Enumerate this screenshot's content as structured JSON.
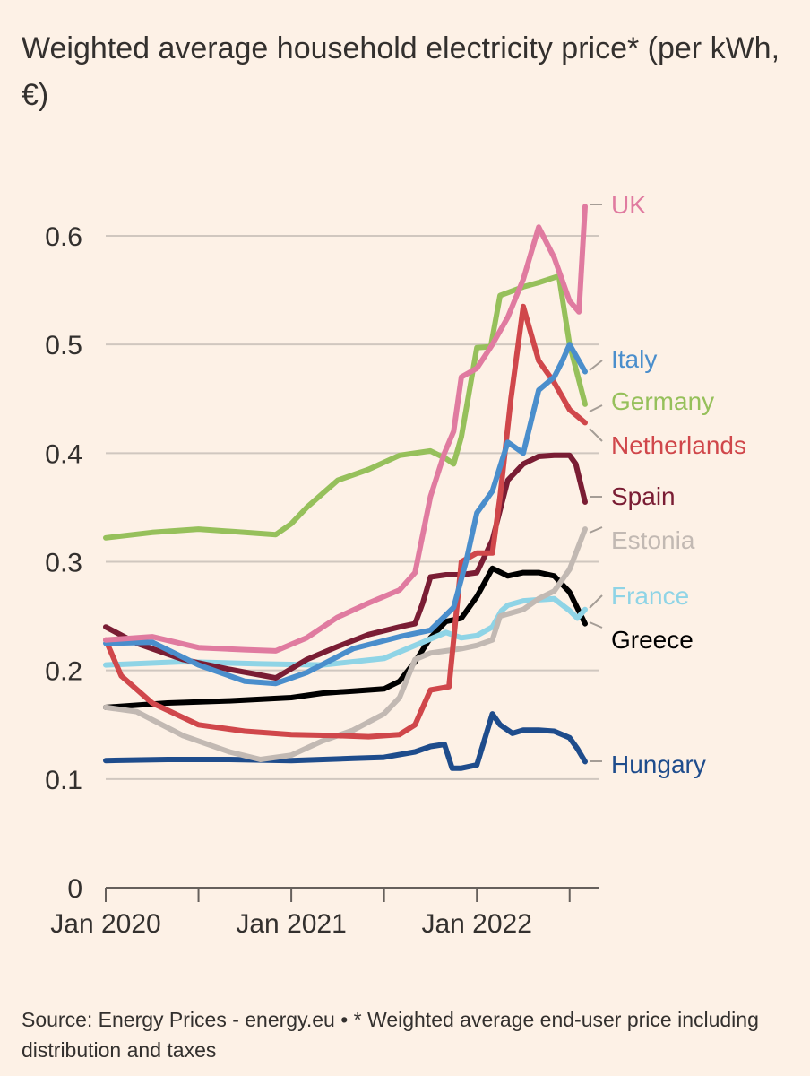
{
  "header": {
    "title": "Weighted average household electricity price* (per kWh, €)"
  },
  "footer": {
    "source": "Source: Energy Prices - energy.eu • * Weighted average end-user price including distribution and taxes"
  },
  "chart_data": {
    "type": "line",
    "title": "Weighted average household electricity price* (per kWh, €)",
    "xlabel": "",
    "ylabel": "",
    "x_unit": "months since Jan 2020",
    "xlim": [
      0,
      31
    ],
    "ylim": [
      0,
      0.6
    ],
    "grid": true,
    "legend": "direct labels at line ends",
    "x_ticks": [
      {
        "value": 0,
        "label": "Jan 2020"
      },
      {
        "value": 6,
        "label": ""
      },
      {
        "value": 12,
        "label": "Jan 2021"
      },
      {
        "value": 18,
        "label": ""
      },
      {
        "value": 24,
        "label": "Jan 2022"
      },
      {
        "value": 30,
        "label": ""
      }
    ],
    "y_ticks": [
      {
        "value": 0,
        "label": "0"
      },
      {
        "value": 0.1,
        "label": "0.1"
      },
      {
        "value": 0.2,
        "label": "0.2"
      },
      {
        "value": 0.3,
        "label": "0.3"
      },
      {
        "value": 0.4,
        "label": "0.4"
      },
      {
        "value": 0.5,
        "label": "0.5"
      },
      {
        "value": 0.6,
        "label": "0.6"
      }
    ],
    "series": [
      {
        "name": "UK",
        "color": "#e07ba0",
        "x": [
          0,
          3,
          6,
          9,
          11,
          13,
          15,
          17,
          19,
          20,
          21,
          21.9,
          22.5,
          23,
          24,
          25,
          26,
          27,
          28,
          29,
          30,
          30.6,
          31
        ],
        "y": [
          0.228,
          0.231,
          0.221,
          0.219,
          0.218,
          0.23,
          0.249,
          0.262,
          0.274,
          0.29,
          0.36,
          0.4,
          0.42,
          0.47,
          0.478,
          0.5,
          0.525,
          0.56,
          0.608,
          0.58,
          0.54,
          0.53,
          0.627
        ]
      },
      {
        "name": "Italy",
        "color": "#4a8ecc",
        "x": [
          0,
          3,
          6,
          9,
          11,
          13,
          16,
          19,
          21,
          22.5,
          23.3,
          24,
          25,
          26,
          27,
          28,
          29,
          29.5,
          30,
          31
        ],
        "y": [
          0.225,
          0.226,
          0.205,
          0.19,
          0.188,
          0.198,
          0.22,
          0.231,
          0.237,
          0.258,
          0.3,
          0.345,
          0.365,
          0.41,
          0.4,
          0.458,
          0.47,
          0.484,
          0.5,
          0.475
        ]
      },
      {
        "name": "Germany",
        "color": "#96c05b",
        "x": [
          0,
          3,
          6,
          9,
          11,
          12,
          13,
          15,
          17,
          19,
          21,
          22,
          22.5,
          23,
          24,
          24.9,
          25.5,
          27,
          28,
          29.3,
          30,
          31
        ],
        "y": [
          0.322,
          0.327,
          0.33,
          0.327,
          0.325,
          0.335,
          0.35,
          0.375,
          0.385,
          0.398,
          0.402,
          0.395,
          0.39,
          0.415,
          0.497,
          0.498,
          0.545,
          0.553,
          0.557,
          0.563,
          0.5,
          0.445
        ]
      },
      {
        "name": "Netherlands",
        "color": "#d0474b",
        "x": [
          0,
          1,
          3,
          6,
          9,
          12,
          15,
          17,
          19,
          20,
          21,
          22.2,
          23,
          24,
          25,
          25.5,
          26.2,
          27,
          28,
          29,
          30,
          31
        ],
        "y": [
          0.228,
          0.195,
          0.17,
          0.15,
          0.144,
          0.141,
          0.14,
          0.139,
          0.141,
          0.15,
          0.182,
          0.185,
          0.3,
          0.308,
          0.308,
          0.36,
          0.45,
          0.535,
          0.485,
          0.465,
          0.44,
          0.428
        ]
      },
      {
        "name": "Spain",
        "color": "#7a1d34",
        "x": [
          0,
          2,
          5,
          8,
          11,
          13,
          15,
          17,
          19,
          20,
          20.5,
          21,
          22,
          23,
          24,
          25,
          26,
          27,
          28,
          29,
          30,
          30.4,
          31
        ],
        "y": [
          0.24,
          0.225,
          0.21,
          0.201,
          0.193,
          0.21,
          0.222,
          0.233,
          0.24,
          0.243,
          0.262,
          0.286,
          0.288,
          0.288,
          0.29,
          0.32,
          0.375,
          0.39,
          0.397,
          0.398,
          0.398,
          0.39,
          0.355
        ]
      },
      {
        "name": "Estonia",
        "color": "#c2b9b3",
        "x": [
          0,
          2,
          5,
          8,
          10,
          12,
          14,
          16,
          18,
          19,
          20,
          21,
          22,
          23,
          24,
          25,
          25.5,
          26,
          27,
          28,
          29,
          30,
          31
        ],
        "y": [
          0.166,
          0.162,
          0.14,
          0.125,
          0.118,
          0.122,
          0.135,
          0.145,
          0.16,
          0.175,
          0.21,
          0.216,
          0.218,
          0.22,
          0.223,
          0.228,
          0.25,
          0.252,
          0.256,
          0.266,
          0.273,
          0.293,
          0.33
        ]
      },
      {
        "name": "France",
        "color": "#8fd4e6",
        "x": [
          0,
          5,
          10,
          14,
          18,
          20,
          22,
          23,
          24,
          25,
          25.6,
          26,
          27,
          28,
          29,
          30,
          30.5,
          31
        ],
        "y": [
          0.205,
          0.208,
          0.206,
          0.205,
          0.211,
          0.223,
          0.235,
          0.23,
          0.232,
          0.24,
          0.255,
          0.26,
          0.264,
          0.265,
          0.266,
          0.255,
          0.248,
          0.256
        ]
      },
      {
        "name": "Greece",
        "color": "#000000",
        "x": [
          0,
          4,
          8,
          12,
          14,
          16,
          18,
          19,
          20,
          21,
          22,
          23,
          24,
          25,
          26,
          27,
          28,
          29,
          30,
          31
        ],
        "y": [
          0.166,
          0.17,
          0.172,
          0.175,
          0.179,
          0.181,
          0.183,
          0.19,
          0.208,
          0.23,
          0.245,
          0.248,
          0.268,
          0.294,
          0.287,
          0.29,
          0.29,
          0.287,
          0.272,
          0.243
        ]
      },
      {
        "name": "Hungary",
        "color": "#1e4c8c",
        "x": [
          0,
          4,
          8,
          12,
          16,
          18,
          20,
          21,
          21.9,
          22.4,
          23,
          24,
          25,
          25.5,
          26.3,
          27,
          28,
          29,
          30,
          30.5,
          31
        ],
        "y": [
          0.117,
          0.118,
          0.118,
          0.117,
          0.119,
          0.12,
          0.125,
          0.13,
          0.132,
          0.11,
          0.11,
          0.113,
          0.16,
          0.15,
          0.142,
          0.145,
          0.145,
          0.144,
          0.138,
          0.128,
          0.116
        ]
      }
    ],
    "end_labels": [
      {
        "name": "UK",
        "color": "#e07ba0"
      },
      {
        "name": "Italy",
        "color": "#4a8ecc"
      },
      {
        "name": "Germany",
        "color": "#96c05b"
      },
      {
        "name": "Netherlands",
        "color": "#d0474b"
      },
      {
        "name": "Spain",
        "color": "#7a1d34"
      },
      {
        "name": "Estonia",
        "color": "#c2b9b3"
      },
      {
        "name": "France",
        "color": "#8fd4e6"
      },
      {
        "name": "Greece",
        "color": "#000000"
      },
      {
        "name": "Hungary",
        "color": "#1e4c8c"
      }
    ]
  }
}
